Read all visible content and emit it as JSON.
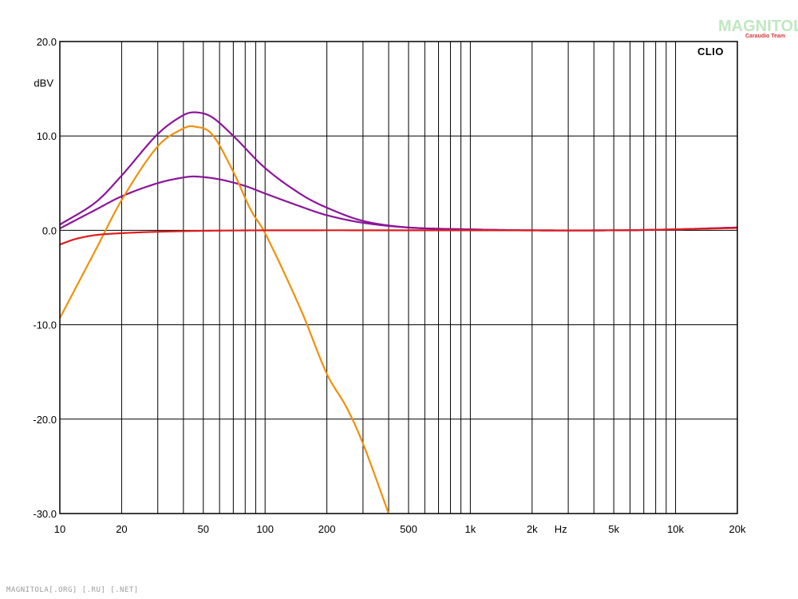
{
  "watermark": {
    "logo": "MAGNITOLA",
    "sub": "Caraudio Team"
  },
  "footer": "MAGNITOLA[.ORG] [.RU] [.NET]",
  "chart_data": {
    "type": "line",
    "title": "",
    "brand_label": "CLIO",
    "ylabel": "dBV",
    "xunit": "Hz",
    "xscale": "log",
    "xlim": [
      10,
      20000
    ],
    "ylim": [
      -30,
      20
    ],
    "grid": true,
    "yticks": [
      {
        "value": 20,
        "label": "20.0"
      },
      {
        "value": 10,
        "label": "10.0"
      },
      {
        "value": 0,
        "label": "0.0"
      },
      {
        "value": -10,
        "label": "-10.0"
      },
      {
        "value": -20,
        "label": "-20.0"
      },
      {
        "value": -30,
        "label": "-30.0"
      }
    ],
    "xticks": [
      {
        "value": 10,
        "label": "10"
      },
      {
        "value": 20,
        "label": "20"
      },
      {
        "value": 50,
        "label": "50"
      },
      {
        "value": 100,
        "label": "100"
      },
      {
        "value": 200,
        "label": "200"
      },
      {
        "value": 500,
        "label": "500"
      },
      {
        "value": 1000,
        "label": "1k"
      },
      {
        "value": 2000,
        "label": "2k"
      },
      {
        "value": 5000,
        "label": "5k"
      },
      {
        "value": 10000,
        "label": "10k"
      },
      {
        "value": 20000,
        "label": "20k"
      }
    ],
    "series": [
      {
        "color": "#8b169a",
        "points": [
          [
            10,
            0.6
          ],
          [
            15,
            3.0
          ],
          [
            20,
            5.8
          ],
          [
            30,
            10.2
          ],
          [
            40,
            12.2
          ],
          [
            46,
            12.5
          ],
          [
            55,
            12.0
          ],
          [
            70,
            10.0
          ],
          [
            100,
            6.6
          ],
          [
            150,
            3.8
          ],
          [
            200,
            2.4
          ],
          [
            300,
            1.0
          ],
          [
            500,
            0.3
          ],
          [
            1000,
            0.1
          ],
          [
            2000,
            0.0
          ],
          [
            5000,
            0.0
          ],
          [
            10000,
            0.1
          ],
          [
            20000,
            0.3
          ]
        ]
      },
      {
        "color": "#8b169a",
        "points": [
          [
            10,
            0.2
          ],
          [
            15,
            2.2
          ],
          [
            20,
            3.6
          ],
          [
            30,
            5.0
          ],
          [
            40,
            5.6
          ],
          [
            46,
            5.7
          ],
          [
            60,
            5.4
          ],
          [
            80,
            4.7
          ],
          [
            100,
            3.9
          ],
          [
            150,
            2.5
          ],
          [
            200,
            1.6
          ],
          [
            300,
            0.8
          ],
          [
            500,
            0.3
          ],
          [
            1000,
            0.1
          ],
          [
            2000,
            0.0
          ],
          [
            5000,
            0.0
          ],
          [
            10000,
            0.1
          ],
          [
            20000,
            0.3
          ]
        ]
      },
      {
        "color": "#f0900c",
        "points": [
          [
            10,
            -9.3
          ],
          [
            15,
            -2.0
          ],
          [
            20,
            3.2
          ],
          [
            30,
            8.9
          ],
          [
            40,
            10.8
          ],
          [
            45,
            11.0
          ],
          [
            55,
            10.2
          ],
          [
            70,
            6.2
          ],
          [
            85,
            2.2
          ],
          [
            100,
            -0.3
          ],
          [
            150,
            -8.5
          ],
          [
            200,
            -15.2
          ],
          [
            250,
            -18.8
          ],
          [
            300,
            -22.6
          ],
          [
            400,
            -30.0
          ]
        ]
      },
      {
        "color": "#dd1e1e",
        "points": [
          [
            10,
            -1.5
          ],
          [
            12,
            -0.9
          ],
          [
            15,
            -0.5
          ],
          [
            20,
            -0.3
          ],
          [
            30,
            -0.15
          ],
          [
            50,
            -0.05
          ],
          [
            100,
            0.0
          ],
          [
            1000,
            0.0
          ],
          [
            5000,
            0.0
          ],
          [
            10000,
            0.1
          ],
          [
            20000,
            0.25
          ]
        ]
      }
    ]
  }
}
